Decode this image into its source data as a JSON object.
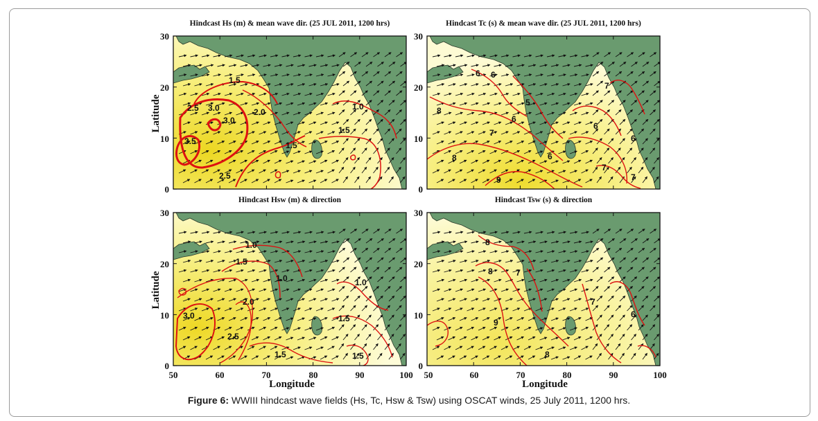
{
  "caption": {
    "label": "Figure 6:",
    "text": " WWIII hindcast wave fields (Hs, Tc, Hsw & Tsw) using OSCAT winds, 25 July 2011, 1200 hrs."
  },
  "axes": {
    "x_label": "Longitude",
    "y_label": "Latitude",
    "x_ticks": [
      "50",
      "60",
      "70",
      "80",
      "90",
      "100"
    ],
    "y_ticks": [
      "0",
      "10",
      "20",
      "30"
    ]
  },
  "colors": {
    "land": "#6a9b6f",
    "sea_light": "#fefcd0",
    "sea_dark": "#f0e030",
    "contour": "#dd1111",
    "arrow": "#111111"
  },
  "panels": [
    {
      "id": "hs",
      "title": "Hindcast Hs (m) & mean wave dir. (25 JUL 2011, 1200 hrs)",
      "contour_labels": [
        "1.5",
        "2.5",
        "3.0",
        "3.0",
        "3.5",
        "2.0",
        "2.5",
        "1.5",
        "1.0",
        "1.5"
      ]
    },
    {
      "id": "tc",
      "title": "Hindcast Tc (s) & mean wave dir. (25 JUL 2011, 1200 hrs)",
      "contour_labels": [
        "6",
        "6",
        "6",
        "8",
        "8",
        "7",
        "5",
        "6",
        "9",
        "7",
        "6",
        "6",
        "7",
        "7"
      ]
    },
    {
      "id": "hsw",
      "title": "Hindcast Hsw (m) & direction",
      "contour_labels": [
        "1.0",
        "1.5",
        "1.0",
        "1.0",
        "3.0",
        "2.0",
        "2.5",
        "1.5",
        "1.5",
        "1.5"
      ]
    },
    {
      "id": "tsw",
      "title": "Hindcast Tsw (s) & direction",
      "contour_labels": [
        "8",
        "8",
        "7",
        "9",
        "8",
        "7",
        "6"
      ]
    }
  ]
}
